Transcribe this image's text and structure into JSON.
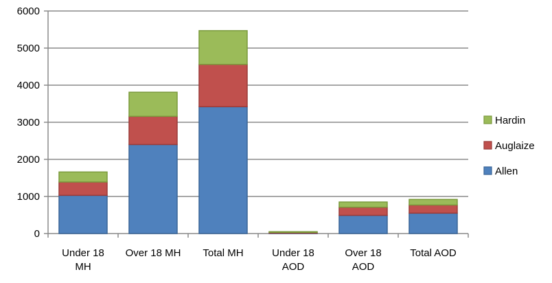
{
  "chart_data": {
    "type": "bar",
    "stacked": true,
    "categories": [
      [
        "Under 18",
        "MH"
      ],
      [
        "Over 18 MH"
      ],
      [
        "Total MH"
      ],
      [
        "Under 18",
        "AOD"
      ],
      [
        "Over 18",
        "AOD"
      ],
      [
        "Total AOD"
      ]
    ],
    "series": [
      {
        "name": "Allen",
        "values": [
          1030,
          2400,
          3420,
          10,
          490,
          550
        ],
        "color": "#4F81BD",
        "stroke": "#3A6597"
      },
      {
        "name": "Auglaize",
        "values": [
          360,
          760,
          1140,
          20,
          220,
          220
        ],
        "color": "#C0504D",
        "stroke": "#9A3B39"
      },
      {
        "name": "Hardin",
        "values": [
          270,
          650,
          910,
          20,
          140,
          150
        ],
        "color": "#9BBB59",
        "stroke": "#7A9A3C"
      }
    ],
    "ylim": [
      0,
      6000
    ],
    "yticks": [
      0,
      1000,
      2000,
      3000,
      4000,
      5000,
      6000
    ],
    "grid": true,
    "legend_position": "right",
    "title": "",
    "xlabel": "",
    "ylabel": ""
  }
}
